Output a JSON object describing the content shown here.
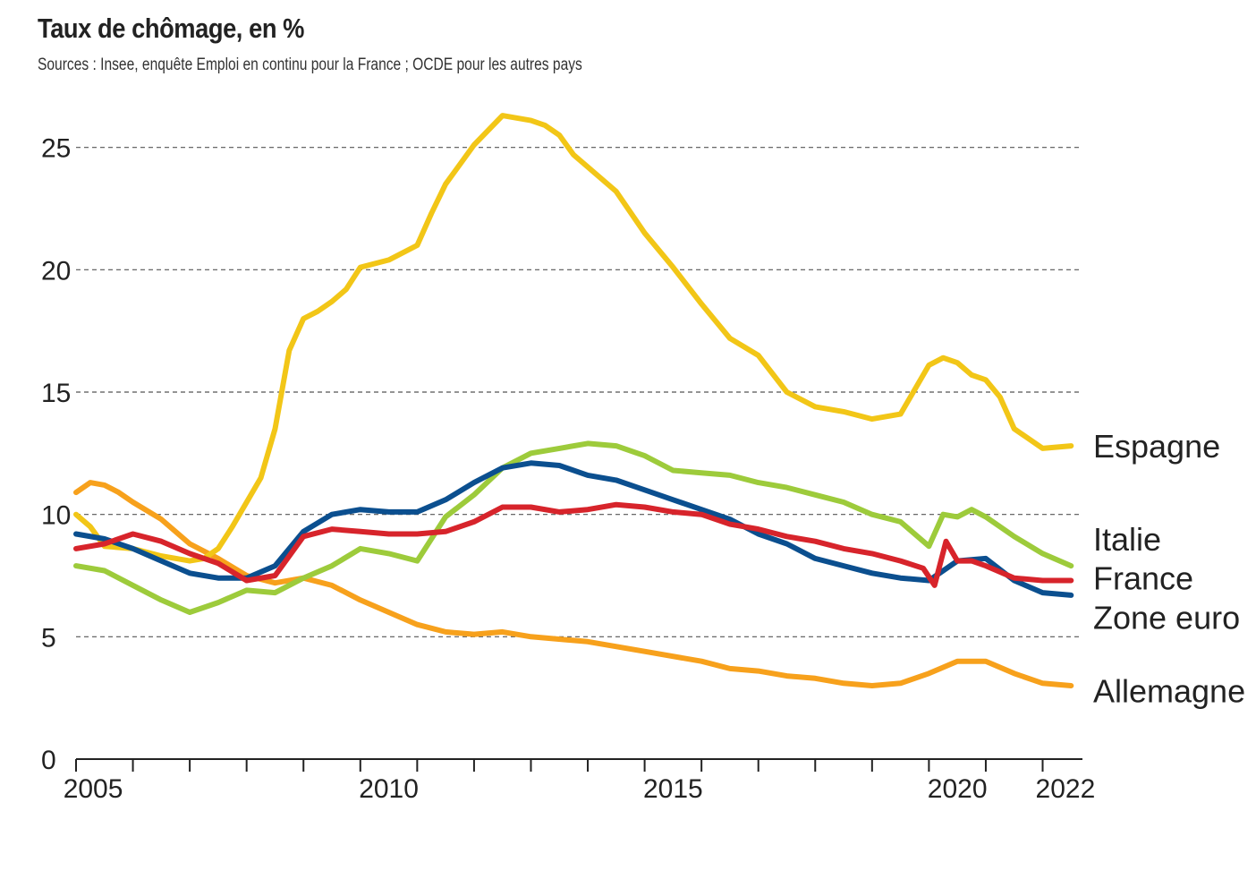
{
  "chart_data": {
    "type": "line",
    "title": "Taux de chômage, en %",
    "subtitle": "Sources : Insee, enquête Emploi en continu pour la France ; OCDE pour les autres pays",
    "xlabel": "",
    "ylabel": "",
    "xlim": [
      2005,
      2022.7
    ],
    "ylim": [
      0,
      27
    ],
    "yticks": [
      0,
      5,
      10,
      15,
      20,
      25
    ],
    "xtick_labels": [
      "2005",
      "2010",
      "2015",
      "2020",
      "2022"
    ],
    "xtick_label_values": [
      2005.3,
      2010.5,
      2015.5,
      2020.5,
      2022.4
    ],
    "grid": "horizontal dashed",
    "series": [
      {
        "name": "Allemagne",
        "color": "#F7A11C",
        "x": [
          2005.0,
          2005.25,
          2005.5,
          2005.75,
          2006.0,
          2006.5,
          2007.0,
          2007.5,
          2008.0,
          2008.5,
          2009.0,
          2009.5,
          2010.0,
          2010.5,
          2011.0,
          2011.5,
          2012.0,
          2012.5,
          2013.0,
          2014.0,
          2015.0,
          2016.0,
          2016.5,
          2017.0,
          2017.5,
          2018.0,
          2018.5,
          2019.0,
          2019.5,
          2020.0,
          2020.5,
          2021.0,
          2021.5,
          2022.0,
          2022.5
        ],
        "y": [
          10.9,
          11.3,
          11.2,
          10.9,
          10.5,
          9.8,
          8.8,
          8.2,
          7.5,
          7.2,
          7.4,
          7.1,
          6.5,
          6.0,
          5.5,
          5.2,
          5.1,
          5.2,
          5.0,
          4.8,
          4.4,
          4.0,
          3.7,
          3.6,
          3.4,
          3.3,
          3.1,
          3.0,
          3.1,
          3.5,
          4.0,
          4.0,
          3.5,
          3.1,
          3.0
        ]
      },
      {
        "name": "Espagne",
        "color": "#F2C617",
        "x": [
          2005.0,
          2005.25,
          2005.5,
          2006.0,
          2006.5,
          2007.0,
          2007.25,
          2007.5,
          2007.75,
          2008.0,
          2008.25,
          2008.5,
          2008.75,
          2009.0,
          2009.25,
          2009.5,
          2009.75,
          2010.0,
          2010.5,
          2011.0,
          2011.25,
          2011.5,
          2012.0,
          2012.5,
          2013.0,
          2013.25,
          2013.5,
          2013.75,
          2014.0,
          2014.5,
          2015.0,
          2015.5,
          2016.0,
          2016.5,
          2017.0,
          2017.5,
          2018.0,
          2018.5,
          2019.0,
          2019.5,
          2020.0,
          2020.25,
          2020.5,
          2020.75,
          2021.0,
          2021.25,
          2021.5,
          2022.0,
          2022.5
        ],
        "y": [
          10.0,
          9.5,
          8.7,
          8.6,
          8.3,
          8.1,
          8.2,
          8.6,
          9.5,
          10.5,
          11.5,
          13.5,
          16.7,
          18.0,
          18.3,
          18.7,
          19.2,
          20.1,
          20.4,
          21.0,
          22.3,
          23.5,
          25.1,
          26.3,
          26.1,
          25.9,
          25.5,
          24.7,
          24.2,
          23.2,
          21.5,
          20.1,
          18.6,
          17.2,
          16.5,
          15.0,
          14.4,
          14.2,
          13.9,
          14.1,
          16.1,
          16.4,
          16.2,
          15.7,
          15.5,
          14.8,
          13.5,
          12.7,
          12.8
        ]
      },
      {
        "name": "Italie",
        "color": "#9DCB3B",
        "x": [
          2005.0,
          2005.5,
          2006.0,
          2006.5,
          2007.0,
          2007.5,
          2008.0,
          2008.5,
          2009.0,
          2009.5,
          2010.0,
          2010.5,
          2011.0,
          2011.5,
          2012.0,
          2012.5,
          2013.0,
          2013.5,
          2014.0,
          2014.5,
          2015.0,
          2015.5,
          2016.0,
          2016.5,
          2017.0,
          2017.5,
          2018.0,
          2018.5,
          2019.0,
          2019.5,
          2020.0,
          2020.25,
          2020.5,
          2020.75,
          2021.0,
          2021.5,
          2022.0,
          2022.5
        ],
        "y": [
          7.9,
          7.7,
          7.1,
          6.5,
          6.0,
          6.4,
          6.9,
          6.8,
          7.4,
          7.9,
          8.6,
          8.4,
          8.1,
          9.9,
          10.8,
          11.9,
          12.5,
          12.7,
          12.9,
          12.8,
          12.4,
          11.8,
          11.7,
          11.6,
          11.3,
          11.1,
          10.8,
          10.5,
          10.0,
          9.7,
          8.7,
          10.0,
          9.9,
          10.2,
          9.9,
          9.1,
          8.4,
          7.9
        ]
      },
      {
        "name": "Zone euro",
        "color": "#0B4F8F",
        "x": [
          2005.0,
          2005.5,
          2006.0,
          2006.5,
          2007.0,
          2007.5,
          2008.0,
          2008.5,
          2009.0,
          2009.5,
          2010.0,
          2010.5,
          2011.0,
          2011.5,
          2012.0,
          2012.5,
          2013.0,
          2013.5,
          2014.0,
          2014.5,
          2015.0,
          2015.5,
          2016.0,
          2016.5,
          2017.0,
          2017.5,
          2018.0,
          2018.5,
          2019.0,
          2019.5,
          2020.0,
          2020.5,
          2021.0,
          2021.5,
          2022.0,
          2022.5
        ],
        "y": [
          9.2,
          9.0,
          8.6,
          8.1,
          7.6,
          7.4,
          7.4,
          7.9,
          9.3,
          10.0,
          10.2,
          10.1,
          10.1,
          10.6,
          11.3,
          11.9,
          12.1,
          12.0,
          11.6,
          11.4,
          11.0,
          10.6,
          10.2,
          9.8,
          9.2,
          8.8,
          8.2,
          7.9,
          7.6,
          7.4,
          7.3,
          8.1,
          8.2,
          7.3,
          6.8,
          6.7
        ]
      },
      {
        "name": "France",
        "color": "#D7242B",
        "x": [
          2005.0,
          2005.5,
          2006.0,
          2006.5,
          2007.0,
          2007.5,
          2008.0,
          2008.5,
          2009.0,
          2009.5,
          2010.0,
          2010.5,
          2011.0,
          2011.5,
          2012.0,
          2012.5,
          2013.0,
          2013.5,
          2014.0,
          2014.5,
          2015.0,
          2015.5,
          2016.0,
          2016.5,
          2017.0,
          2017.5,
          2018.0,
          2018.5,
          2019.0,
          2019.5,
          2019.9,
          2020.1,
          2020.3,
          2020.5,
          2020.75,
          2021.0,
          2021.5,
          2022.0,
          2022.5
        ],
        "y": [
          8.6,
          8.8,
          9.2,
          8.9,
          8.4,
          8.0,
          7.3,
          7.5,
          9.1,
          9.4,
          9.3,
          9.2,
          9.2,
          9.3,
          9.7,
          10.3,
          10.3,
          10.1,
          10.2,
          10.4,
          10.3,
          10.1,
          10.0,
          9.6,
          9.4,
          9.1,
          8.9,
          8.6,
          8.4,
          8.1,
          7.8,
          7.1,
          8.9,
          8.1,
          8.1,
          7.9,
          7.4,
          7.3,
          7.3
        ]
      }
    ],
    "legend": [
      {
        "name": "Espagne",
        "anchor": 12.8
      },
      {
        "name": "Italie",
        "anchor": 9.0
      },
      {
        "name": "France",
        "anchor": 7.4
      },
      {
        "name": "Zone euro",
        "anchor": 5.8
      },
      {
        "name": "Allemagne",
        "anchor": 2.8
      }
    ]
  }
}
